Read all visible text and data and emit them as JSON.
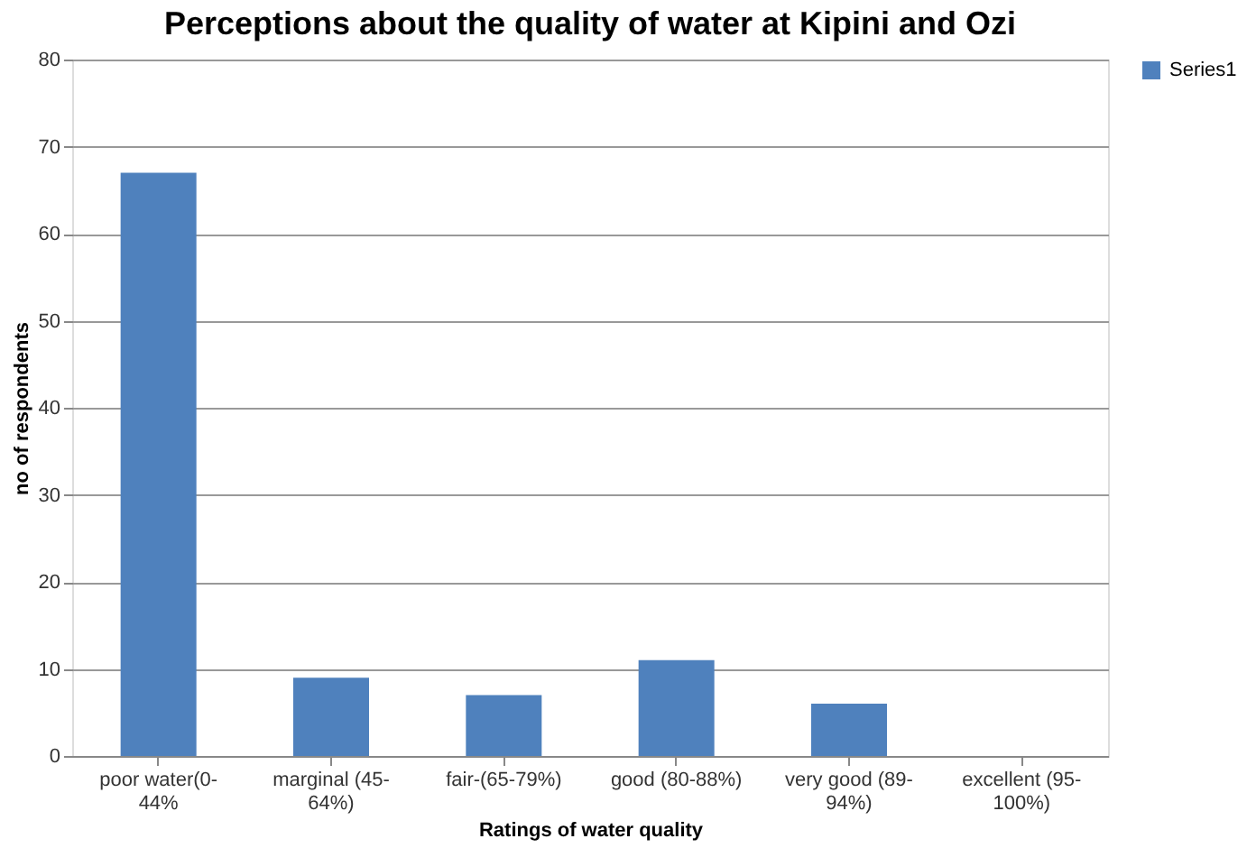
{
  "chart_data": {
    "type": "bar",
    "title": "Perceptions about the quality of water at Kipini and Ozi",
    "xlabel": "Ratings of water quality",
    "ylabel": "no of respondents",
    "categories": [
      "poor water(0-44%",
      "marginal (45-64%)",
      "fair-(65-79%)",
      "good (80-88%)",
      "very good (89-94%)",
      "excellent (95-100%)"
    ],
    "series": [
      {
        "name": "Series1",
        "color": "#4f81bd",
        "values": [
          67,
          9,
          7,
          11,
          6,
          0
        ]
      }
    ],
    "ylim": [
      0,
      80
    ],
    "yticks": [
      0,
      10,
      20,
      30,
      40,
      50,
      60,
      70,
      80
    ],
    "grid": "y",
    "legend": "right"
  }
}
